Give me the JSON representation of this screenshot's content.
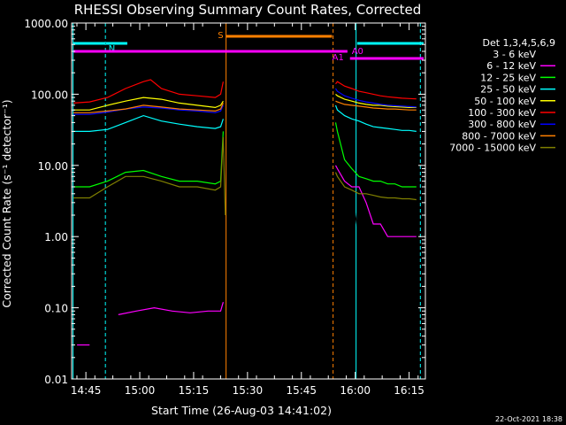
{
  "chart_data": {
    "type": "line",
    "title": "RHESSI Observing Summary Count Rates, Corrected",
    "xlabel": "Start Time (26-Aug-03 14:41:02)",
    "ylabel": "Corrected Count Rate (s⁻¹ detector⁻¹)",
    "yscale": "log",
    "ylim": [
      0.01,
      1000
    ],
    "xlim_minutes": [
      0,
      98.5
    ],
    "y_ticks": [
      {
        "v": 0.01,
        "label": "0.01"
      },
      {
        "v": 0.1,
        "label": "0.10"
      },
      {
        "v": 1,
        "label": "1.00"
      },
      {
        "v": 10,
        "label": "10.00"
      },
      {
        "v": 100,
        "label": "100.00"
      },
      {
        "v": 1000,
        "label": "1000.00"
      }
    ],
    "x_ticks": [
      {
        "m": 3.97,
        "label": "14:45"
      },
      {
        "m": 18.97,
        "label": "15:00"
      },
      {
        "m": 33.97,
        "label": "15:15"
      },
      {
        "m": 48.97,
        "label": "15:30"
      },
      {
        "m": 63.97,
        "label": "15:45"
      },
      {
        "m": 78.97,
        "label": "16:00"
      },
      {
        "m": 93.97,
        "label": "16:15"
      }
    ],
    "legend_title": "Det 1,3,4,5,6,9",
    "series": [
      {
        "name": "3 - 6 keV",
        "color": "#000000",
        "x": [
          1.5,
          7,
          16,
          20,
          25,
          30,
          35,
          41.5,
          42.2,
          73.5,
          74,
          76,
          78,
          79,
          80,
          82,
          84,
          86,
          88,
          90,
          92,
          94,
          96
        ],
        "y": [
          0.03,
          0.03,
          0.04,
          0.05,
          0.04,
          0.035,
          0.03,
          0.025,
          0.06,
          15,
          12,
          8,
          5,
          2,
          1,
          1,
          1,
          1,
          1,
          1,
          1,
          1,
          1
        ],
        "gaps": [
          9.5,
          43,
          98
        ]
      },
      {
        "name": "6 - 12 keV",
        "color": "#ff00ff",
        "x": [
          1.5,
          5,
          13,
          18,
          23,
          28,
          33,
          38,
          41.5,
          42.2,
          73.5,
          74,
          76,
          78,
          80,
          82,
          84,
          86,
          88,
          90,
          92,
          94,
          96
        ],
        "y": [
          0.03,
          0.03,
          0.08,
          0.09,
          0.1,
          0.09,
          0.085,
          0.09,
          0.09,
          0.12,
          10,
          9,
          6,
          5,
          5,
          3,
          1.5,
          1.5,
          1,
          1,
          1,
          1,
          1
        ],
        "gaps": [
          7,
          43,
          98
        ]
      },
      {
        "name": "12 - 25 keV",
        "color": "#00ff00",
        "x": [
          0.5,
          5,
          10,
          15,
          20,
          25,
          30,
          35,
          40,
          41.5,
          42.2,
          73.5,
          74,
          76,
          78,
          80,
          82,
          84,
          86,
          88,
          90,
          92,
          94,
          96
        ],
        "y": [
          5,
          5,
          6,
          8,
          8.5,
          7,
          6,
          6,
          5.5,
          6,
          30,
          40,
          30,
          12,
          9,
          7,
          6.5,
          6,
          6,
          5.5,
          5.5,
          5,
          5,
          5
        ],
        "gaps": [
          43,
          98
        ]
      },
      {
        "name": "25 - 50 keV",
        "color": "#00ffff",
        "x": [
          0.5,
          5,
          10,
          15,
          20,
          25,
          30,
          35,
          40,
          41.5,
          42.2,
          73.5,
          74,
          76,
          78,
          80,
          82,
          84,
          86,
          88,
          90,
          92,
          94,
          96
        ],
        "y": [
          30,
          30,
          32,
          40,
          50,
          42,
          38,
          35,
          33,
          35,
          45,
          70,
          60,
          50,
          45,
          42,
          38,
          35,
          34,
          33,
          32,
          31,
          31,
          30
        ],
        "gaps": [
          43,
          98
        ]
      },
      {
        "name": "50 - 100 keV",
        "color": "#ffff00",
        "x": [
          0.5,
          5,
          10,
          15,
          20,
          25,
          30,
          35,
          40,
          41.5,
          42.2,
          73.5,
          74,
          76,
          78,
          80,
          82,
          84,
          86,
          88,
          90,
          92,
          94,
          96
        ],
        "y": [
          60,
          60,
          70,
          80,
          90,
          85,
          75,
          70,
          65,
          70,
          80,
          100,
          95,
          85,
          80,
          75,
          72,
          70,
          70,
          68,
          67,
          66,
          65,
          65
        ],
        "gaps": [
          43,
          98
        ]
      },
      {
        "name": "100 - 300 keV",
        "color": "#ff0000",
        "x": [
          0.5,
          5,
          10,
          15,
          20,
          22,
          25,
          30,
          35,
          40,
          41.5,
          42.2,
          73.5,
          74,
          76,
          78,
          80,
          82,
          84,
          86,
          88,
          90,
          92,
          94,
          96
        ],
        "y": [
          75,
          78,
          90,
          120,
          150,
          160,
          120,
          100,
          95,
          90,
          100,
          150,
          140,
          150,
          130,
          120,
          110,
          105,
          100,
          95,
          92,
          90,
          88,
          87,
          86
        ],
        "gaps": [
          43,
          98
        ]
      },
      {
        "name": "300 - 800 keV",
        "color": "#0000ff",
        "x": [
          0.5,
          5,
          10,
          15,
          20,
          25,
          30,
          35,
          40,
          41.5,
          42.2,
          73.5,
          74,
          76,
          78,
          80,
          82,
          84,
          86,
          88,
          90,
          92,
          94,
          96
        ],
        "y": [
          52,
          52,
          56,
          62,
          66,
          64,
          60,
          58,
          55,
          58,
          70,
          120,
          110,
          95,
          88,
          82,
          78,
          75,
          72,
          70,
          69,
          68,
          67,
          66
        ],
        "gaps": [
          43,
          98
        ]
      },
      {
        "name": "800 - 7000 keV",
        "color": "#ff8000",
        "x": [
          0.5,
          5,
          10,
          15,
          20,
          25,
          30,
          35,
          40,
          41.5,
          42.2,
          73.5,
          74,
          76,
          78,
          80,
          82,
          84,
          86,
          88,
          90,
          92,
          94,
          96
        ],
        "y": [
          55,
          55,
          58,
          62,
          70,
          66,
          62,
          60,
          58,
          62,
          75,
          80,
          78,
          72,
          70,
          68,
          66,
          64,
          63,
          62,
          62,
          61,
          60,
          60
        ],
        "gaps": [
          43,
          98
        ]
      },
      {
        "name": "7000 - 15000 keV",
        "color": "#808000",
        "x": [
          0.5,
          5,
          10,
          15,
          20,
          25,
          30,
          35,
          40,
          41.5,
          42.2,
          42.8,
          73.5,
          74,
          76,
          78,
          80,
          82,
          84,
          86,
          88,
          90,
          92,
          94,
          96
        ],
        "y": [
          3.5,
          3.5,
          5,
          7,
          7,
          6,
          5,
          5,
          4.5,
          5,
          25,
          2,
          8,
          7,
          5,
          4.5,
          4,
          4,
          3.8,
          3.6,
          3.5,
          3.5,
          3.4,
          3.4,
          3.3
        ],
        "gaps": [
          43.5,
          98
        ]
      }
    ],
    "annotations": [
      {
        "kind": "flag-bar",
        "label": "N",
        "color": "#00ffff",
        "x1": 0.5,
        "x2": 9.3,
        "level": 1,
        "label_at": "right"
      },
      {
        "kind": "flag-bar",
        "label": "",
        "color": "#00ffff",
        "x1": 9.6,
        "x2": 15.5,
        "level": 1,
        "label_at": "none"
      },
      {
        "kind": "flag-bar",
        "label": "",
        "color": "#00ffff",
        "x1": 79.5,
        "x2": 98,
        "level": 1,
        "label_at": "none"
      },
      {
        "kind": "flag-bar",
        "label": "S",
        "color": "#ff8000",
        "x1": 43,
        "x2": 72.5,
        "level": 0,
        "label_at": "left"
      },
      {
        "kind": "flag-bar",
        "label": "A1",
        "color": "#ff00ff",
        "x1": 0.5,
        "x2": 76.8,
        "level": 2,
        "label_at": "end-below"
      },
      {
        "kind": "flag-bar",
        "label": "A0",
        "color": "#ff00ff",
        "x1": 77.5,
        "x2": 98,
        "level": 3,
        "label_at": "start-above"
      }
    ],
    "vertical_markers": [
      {
        "x": 0.4,
        "color": "#00ffff",
        "dash": false
      },
      {
        "x": 9.4,
        "color": "#00ffff",
        "dash": true
      },
      {
        "x": 43.0,
        "color": "#ff8000",
        "dash": false
      },
      {
        "x": 72.8,
        "color": "#ff8000",
        "dash": true
      },
      {
        "x": 79.2,
        "color": "#00ffff",
        "dash": false
      },
      {
        "x": 97.1,
        "color": "#00ffff",
        "dash": true
      }
    ],
    "footer_date": "22-Oct-2021 18:38",
    "grid": false,
    "legend_placement": "right",
    "colors": {
      "background": "#000000",
      "axes": "#ffffff"
    }
  }
}
